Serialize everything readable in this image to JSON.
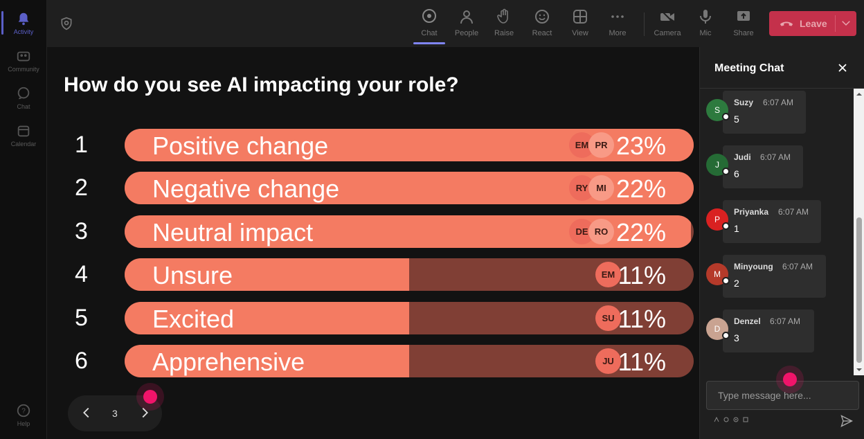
{
  "rail": {
    "items": [
      {
        "label": "Activity",
        "icon": "bell-icon"
      },
      {
        "label": "Community",
        "icon": "community-icon"
      },
      {
        "label": "Chat",
        "icon": "chat-icon"
      },
      {
        "label": "Calendar",
        "icon": "calendar-icon"
      }
    ],
    "help_label": "Help"
  },
  "toolbar": {
    "chat": "Chat",
    "people": "People",
    "raise": "Raise",
    "react": "React",
    "view": "View",
    "more": "More",
    "camera": "Camera",
    "mic": "Mic",
    "share": "Share",
    "leave": "Leave",
    "colors": {
      "accent": "#7f85f5",
      "leave": "#c4314b"
    }
  },
  "poll": {
    "question": "How do you see AI impacting your role?",
    "options": [
      {
        "num": "1",
        "label": "Positive change",
        "pct": "23%",
        "fill": 1.0,
        "voters": [
          "EM",
          "PR"
        ]
      },
      {
        "num": "2",
        "label": "Negative change",
        "pct": "22%",
        "fill": 1.0,
        "voters": [
          "RY",
          "MI"
        ]
      },
      {
        "num": "3",
        "label": "Neutral impact",
        "pct": "22%",
        "fill": 0.995,
        "voters": [
          "DE",
          "RO"
        ]
      },
      {
        "num": "4",
        "label": "Unsure",
        "pct": "11%",
        "fill": 0.5,
        "voters": [
          "EM"
        ]
      },
      {
        "num": "5",
        "label": "Excited",
        "pct": "11%",
        "fill": 0.5,
        "voters": [
          "SU"
        ]
      },
      {
        "num": "6",
        "label": "Apprehensive",
        "pct": "11%",
        "fill": 0.5,
        "voters": [
          "JU"
        ]
      }
    ],
    "page": "3"
  },
  "chat": {
    "title": "Meeting Chat",
    "messages": [
      {
        "initial": "S",
        "name": "Suzy",
        "time": "6:07 AM",
        "text": "5",
        "color": "#2d7a3e"
      },
      {
        "initial": "J",
        "name": "Judi",
        "time": "6:07 AM",
        "text": "6",
        "color": "#256b35"
      },
      {
        "initial": "P",
        "name": "Priyanka",
        "time": "6:07 AM",
        "text": "1",
        "color": "#d92121"
      },
      {
        "initial": "M",
        "name": "Minyoung",
        "time": "6:07 AM",
        "text": "2",
        "color": "#b53a2a"
      },
      {
        "initial": "D",
        "name": "Denzel",
        "time": "6:07 AM",
        "text": "3",
        "color": "#c9a391"
      }
    ],
    "compose_placeholder": "Type message here..."
  }
}
